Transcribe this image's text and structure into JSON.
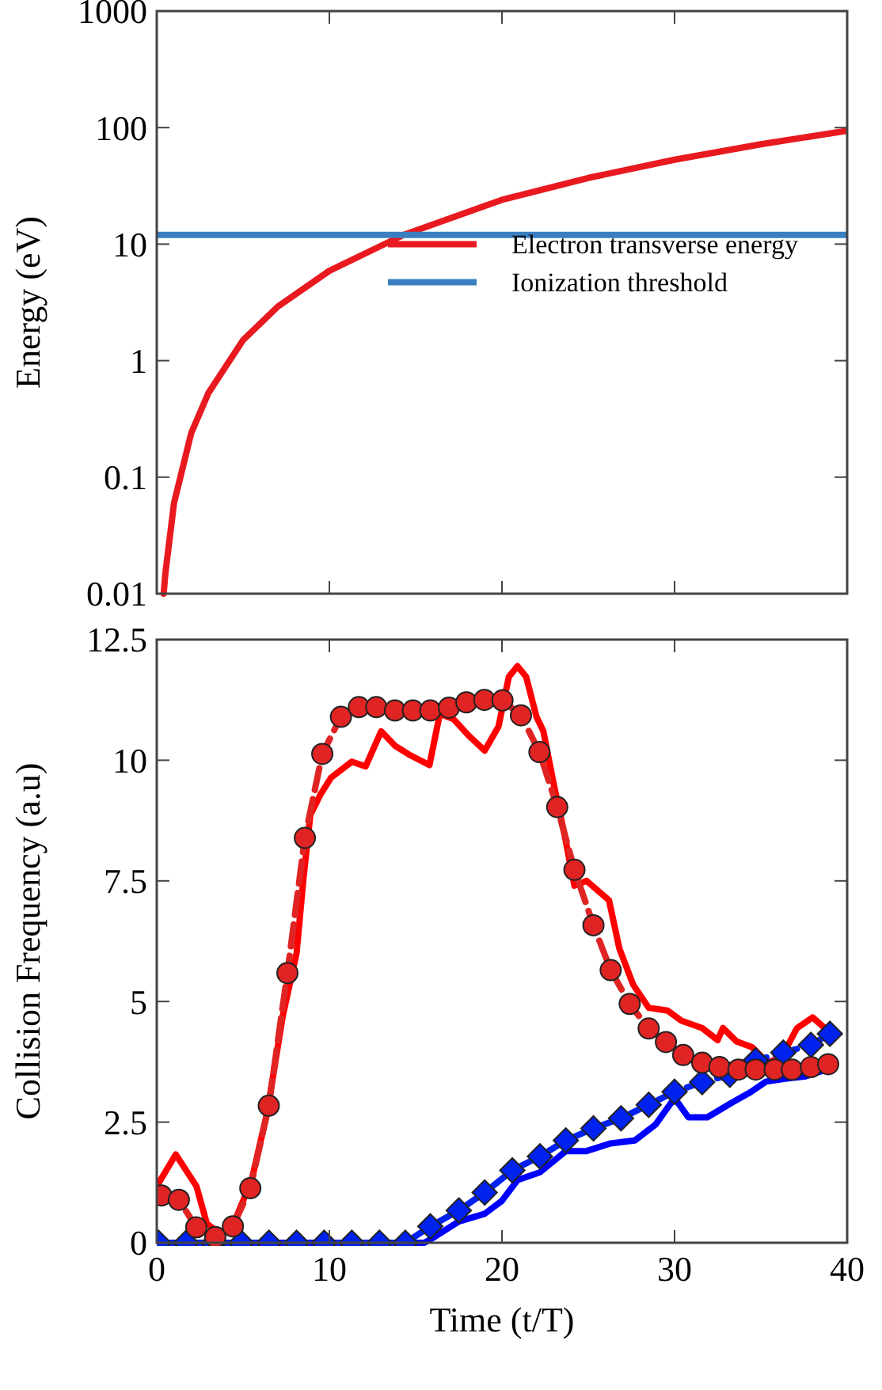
{
  "chart_data": [
    {
      "type": "line",
      "ylabel": "Energy (eV)",
      "log": "y",
      "xlim": [
        0,
        40
      ],
      "xticks": [
        0,
        10,
        20,
        30,
        40
      ],
      "ylim": [
        0.01,
        1000
      ],
      "yticks": [
        0.01,
        0.1,
        1,
        10,
        100,
        1000
      ],
      "tick_labels": "y",
      "legend": "right",
      "grid": false,
      "series": [
        {
          "name": "Electron transverse energy",
          "color": "#e8191f",
          "line_style": "solid",
          "marker": "none",
          "x": [
            0.4,
            0.5,
            1,
            2,
            3,
            5,
            7,
            10,
            14.3,
            20,
            25,
            30,
            35,
            40
          ],
          "values": [
            0.01,
            0.015,
            0.06,
            0.24,
            0.53,
            1.5,
            2.9,
            5.9,
            12,
            24,
            37,
            53,
            72,
            94
          ]
        },
        {
          "name": "Ionization threshold",
          "color": "#3a7fc0",
          "line_style": "solid",
          "marker": "none",
          "x": [
            0,
            40
          ],
          "values": [
            12,
            12
          ]
        }
      ]
    },
    {
      "type": "line",
      "xlabel": "Time (t/T)",
      "ylabel": "Collision Frequency (a.u)",
      "xlim": [
        0,
        40
      ],
      "xticks": [
        0,
        10,
        20,
        30,
        40
      ],
      "ylim": [
        0,
        12.5
      ],
      "yticks": [
        {
          "value": 0,
          "label": "0"
        },
        {
          "value": 2.5,
          "label": "2.5"
        },
        {
          "value": 5,
          "label": "5"
        },
        {
          "value": 7.5,
          "label": "7.5"
        },
        {
          "value": 10,
          "label": "10"
        },
        {
          "value": 12.5,
          "label": "12.5"
        }
      ],
      "legend": false,
      "grid": false,
      "series": [
        {
          "color": "#ff0000",
          "line_style": "solid",
          "marker": "none",
          "x": [
            0,
            1.1,
            2.3,
            2.9,
            3.6,
            4.4,
            5.5,
            6.4,
            7.3,
            8.1,
            8.5,
            8.9,
            9.5,
            10.1,
            11.3,
            12.1,
            13,
            13.8,
            14.7,
            15.8,
            16.4,
            17.2,
            18.1,
            19,
            19.8,
            20.4,
            20.9,
            21.4,
            22,
            22.4,
            23,
            23.6,
            24.2,
            24.9,
            26.2,
            26.8,
            27.6,
            28.5,
            29.6,
            30.4,
            31.6,
            32.5,
            32.8,
            33.6,
            34.5,
            35.4,
            36.2,
            37.1,
            38,
            38.7
          ],
          "values": [
            1.17,
            1.83,
            1.17,
            0.4,
            0.2,
            0.35,
            1.3,
            2.7,
            4.7,
            6,
            7.55,
            8.87,
            9.3,
            9.64,
            9.97,
            9.87,
            10.6,
            10.3,
            10.1,
            9.9,
            10.96,
            10.85,
            10.5,
            10.2,
            10.7,
            11.73,
            11.95,
            11.73,
            10.9,
            10.6,
            9.5,
            8.5,
            7.4,
            7.5,
            7.1,
            6.1,
            5.35,
            4.87,
            4.81,
            4.6,
            4.45,
            4.2,
            4.45,
            4.17,
            4.05,
            3.73,
            3.85,
            4.45,
            4.67,
            4.45
          ]
        },
        {
          "color": "#e02424",
          "line_style": "dashed",
          "marker": "circle",
          "x": [
            0.26,
            1.28,
            2.29,
            3.39,
            4.41,
            5.42,
            6.49,
            7.57,
            8.58,
            9.59,
            10.67,
            11.71,
            12.72,
            13.8,
            14.84,
            15.85,
            16.93,
            17.94,
            18.98,
            20.03,
            21.1,
            22.17,
            23.2,
            24.2,
            25.3,
            26.3,
            27.4,
            28.5,
            29.5,
            30.5,
            31.6,
            32.6,
            33.7,
            34.7,
            35.8,
            36.8,
            37.9,
            38.9
          ],
          "values": [
            0.98,
            0.89,
            0.32,
            0.12,
            0.34,
            1.13,
            2.84,
            5.59,
            8.39,
            10.13,
            10.9,
            11.1,
            11.1,
            11.03,
            11.03,
            11.03,
            11.09,
            11.2,
            11.25,
            11.24,
            10.93,
            10.17,
            9.03,
            7.73,
            6.58,
            5.65,
            4.95,
            4.44,
            4.16,
            3.89,
            3.73,
            3.64,
            3.59,
            3.59,
            3.59,
            3.59,
            3.64,
            3.7
          ]
        },
        {
          "color": "#0000ff",
          "line_style": "solid",
          "marker": "none",
          "x": [
            0,
            15.5,
            16,
            17.5,
            19,
            20,
            20.9,
            22.2,
            23.7,
            24.9,
            26.3,
            27.7,
            28.9,
            30,
            30.8,
            31.9,
            33.3,
            34.4,
            35.3,
            36.4,
            37.6,
            38.9
          ],
          "values": [
            0,
            0,
            0.1,
            0.44,
            0.6,
            0.87,
            1.3,
            1.46,
            1.9,
            1.9,
            2.06,
            2.12,
            2.45,
            3,
            2.6,
            2.6,
            2.9,
            3.12,
            3.34,
            3.4,
            3.45,
            3.6
          ]
        },
        {
          "color": "#0022ee",
          "line_style": "dashed",
          "marker": "diamond",
          "x": [
            0.1,
            1.7,
            3.3,
            4.9,
            6.5,
            8.1,
            9.7,
            11.3,
            12.9,
            14.4,
            15.85,
            17.5,
            19,
            20.6,
            22.2,
            23.7,
            25.3,
            26.9,
            28.5,
            30,
            31.6,
            33.2,
            34.7,
            36.3,
            37.9,
            39
          ],
          "values": [
            0,
            0,
            0,
            0,
            0,
            0,
            0,
            0,
            0,
            0,
            0.34,
            0.67,
            1.04,
            1.5,
            1.79,
            2.12,
            2.37,
            2.58,
            2.86,
            3.13,
            3.33,
            3.48,
            3.78,
            3.94,
            4.1,
            4.33
          ]
        }
      ]
    }
  ]
}
